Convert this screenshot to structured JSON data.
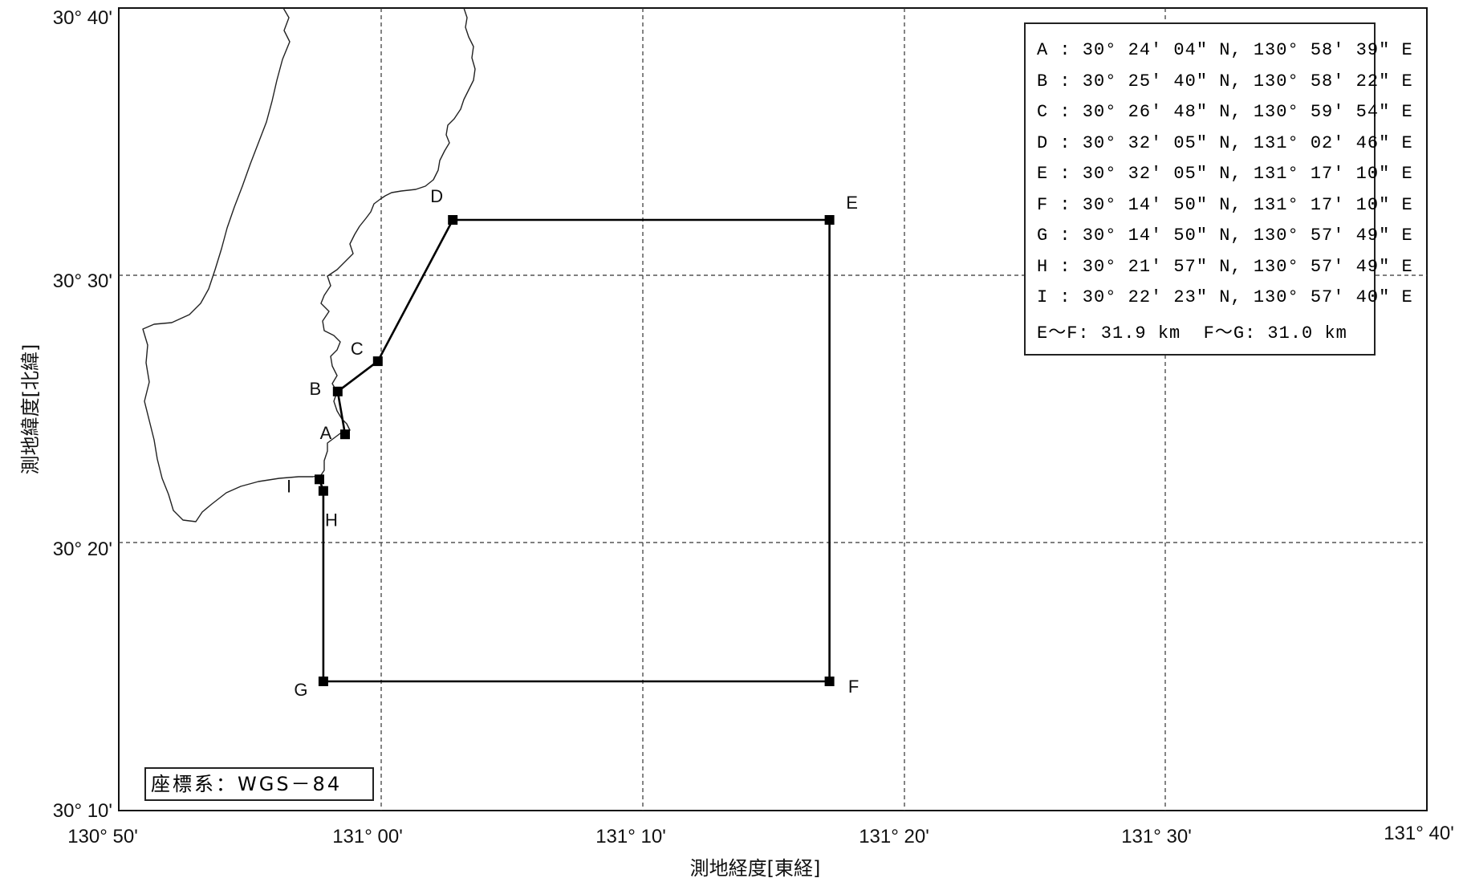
{
  "map": {
    "x_ticks": [
      "130° 50'",
      "131° 00'",
      "131° 10'",
      "131° 20'",
      "131° 30'",
      "131° 40'"
    ],
    "y_ticks": [
      "30° 40'",
      "30° 30'",
      "30° 20'",
      "30° 10'"
    ],
    "x_axis_title": "測地経度[東経]",
    "y_axis_title": "測地緯度[北緯]",
    "x_range_deg": [
      130.8333,
      131.6667
    ],
    "y_range_deg": [
      30.1667,
      30.6667
    ],
    "line_color": "#000000",
    "grid": "dashed",
    "points": [
      {
        "label": "A",
        "lat": "30° 24' 04\" N",
        "lon": "130° 58' 39\" E"
      },
      {
        "label": "B",
        "lat": "30° 25' 40\" N",
        "lon": "130° 58' 22\" E"
      },
      {
        "label": "C",
        "lat": "30° 26' 48\" N",
        "lon": "130° 59' 54\" E"
      },
      {
        "label": "D",
        "lat": "30° 32' 05\" N",
        "lon": "131° 02' 46\" E"
      },
      {
        "label": "E",
        "lat": "30° 32' 05\" N",
        "lon": "131° 17' 10\" E"
      },
      {
        "label": "F",
        "lat": "30° 14' 50\" N",
        "lon": "131° 17' 10\" E"
      },
      {
        "label": "G",
        "lat": "30° 14' 50\" N",
        "lon": "130° 57' 49\" E"
      },
      {
        "label": "H",
        "lat": "30° 21' 57\" N",
        "lon": "130° 57' 49\" E"
      },
      {
        "label": "I",
        "lat": "30° 22' 23\" N",
        "lon": "130° 57' 40\" E"
      }
    ],
    "polygon_order": [
      "A",
      "B",
      "C",
      "D",
      "E",
      "F",
      "G",
      "H",
      "I"
    ]
  },
  "legend": {
    "rows": [
      "A : 30° 24' 04\" N, 130° 58' 39\" E",
      "B : 30° 25' 40\" N, 130° 58' 22\" E",
      "C : 30° 26' 48\" N, 130° 59' 54\" E",
      "D : 30° 32' 05\" N, 131° 02' 46\" E",
      "E : 30° 32' 05\" N, 131° 17' 10\" E",
      "F : 30° 14' 50\" N, 131° 17' 10\" E",
      "G : 30° 14' 50\" N, 130° 57' 49\" E",
      "H : 30° 21' 57\" N, 130° 57' 49\" E",
      "I : 30° 22' 23\" N, 130° 57' 40\" E"
    ],
    "distances": "E～F: 31.9 km  F～G: 31.0 km"
  },
  "crs_label": "座標系：WGS－84"
}
